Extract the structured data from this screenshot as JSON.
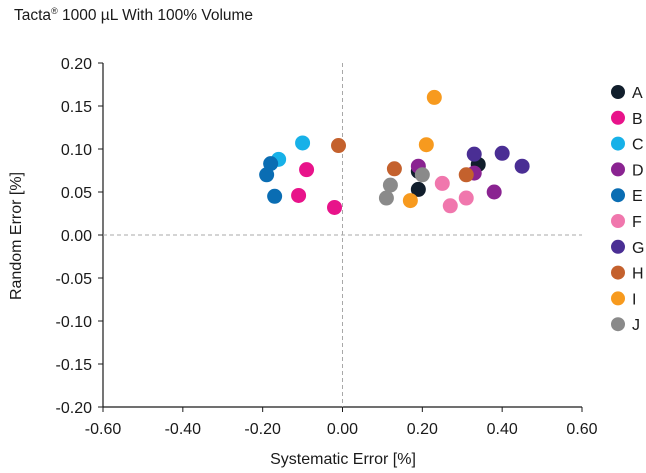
{
  "chart_data": {
    "type": "scatter",
    "title": "Tacta",
    "title_sup": "®",
    "title_rest": " 1000 µL With 100% Volume",
    "xlabel": "Systematic Error [%]",
    "ylabel": "Random Error [%]",
    "xlim": [
      -0.6,
      0.6
    ],
    "ylim": [
      -0.2,
      0.2
    ],
    "xticks": [
      -0.6,
      -0.4,
      -0.2,
      0.0,
      0.2,
      0.4,
      0.6
    ],
    "xtick_labels": [
      "-0.60",
      "-0.40",
      "-0.20",
      "0.00",
      "0.20",
      "0.40",
      "0.60"
    ],
    "yticks": [
      -0.2,
      -0.15,
      -0.1,
      -0.05,
      0.0,
      0.05,
      0.1,
      0.15,
      0.2
    ],
    "ytick_labels": [
      "-0.20",
      "-0.15",
      "-0.10",
      "-0.05",
      "0.00",
      "0.05",
      "0.10",
      "0.15",
      "0.20"
    ],
    "grid": false,
    "reference_lines": "dashed at x=0 and y=0",
    "legend_position": "right",
    "series": [
      {
        "name": "A",
        "color": "#111e2c",
        "points": [
          [
            0.19,
            0.074
          ],
          [
            0.19,
            0.053
          ],
          [
            0.34,
            0.082
          ]
        ]
      },
      {
        "name": "B",
        "color": "#e8138a",
        "points": [
          [
            -0.09,
            0.076
          ],
          [
            -0.11,
            0.046
          ],
          [
            -0.02,
            0.032
          ]
        ]
      },
      {
        "name": "C",
        "color": "#17b1e8",
        "points": [
          [
            -0.1,
            0.107
          ],
          [
            -0.16,
            0.088
          ]
        ]
      },
      {
        "name": "D",
        "color": "#8a2391",
        "points": [
          [
            0.19,
            0.08
          ],
          [
            0.33,
            0.072
          ],
          [
            0.38,
            0.05
          ]
        ]
      },
      {
        "name": "E",
        "color": "#0a6db3",
        "points": [
          [
            -0.18,
            0.083
          ],
          [
            -0.19,
            0.07
          ],
          [
            -0.17,
            0.045
          ]
        ]
      },
      {
        "name": "F",
        "color": "#f077ad",
        "points": [
          [
            0.25,
            0.06
          ],
          [
            0.27,
            0.034
          ],
          [
            0.31,
            0.043
          ]
        ]
      },
      {
        "name": "G",
        "color": "#4a2e94",
        "points": [
          [
            0.33,
            0.094
          ],
          [
            0.4,
            0.095
          ],
          [
            0.45,
            0.08
          ]
        ]
      },
      {
        "name": "H",
        "color": "#c4612d",
        "points": [
          [
            -0.01,
            0.104
          ],
          [
            0.13,
            0.077
          ],
          [
            0.31,
            0.07
          ]
        ]
      },
      {
        "name": "I",
        "color": "#f79a1e",
        "points": [
          [
            0.23,
            0.16
          ],
          [
            0.21,
            0.105
          ],
          [
            0.17,
            0.04
          ]
        ]
      },
      {
        "name": "J",
        "color": "#8a8a8a",
        "points": [
          [
            0.12,
            0.058
          ],
          [
            0.11,
            0.043
          ],
          [
            0.2,
            0.07
          ]
        ]
      }
    ]
  }
}
